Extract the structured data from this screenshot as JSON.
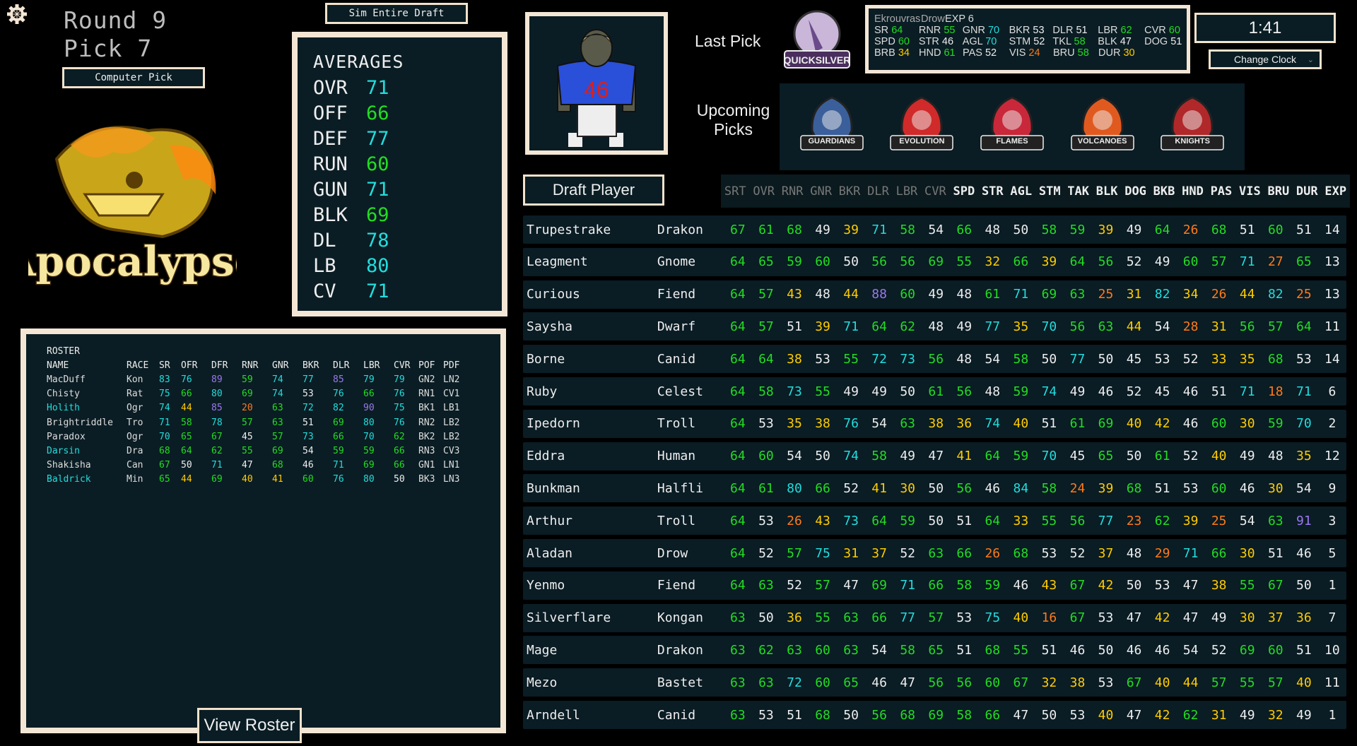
{
  "header": {
    "round_label": "Round 9",
    "pick_label": "Pick 7",
    "computer_pick": "Computer Pick",
    "sim_draft": "Sim Entire Draft",
    "team_name": "Apocalypse"
  },
  "icons": {
    "settings": "gear-icon",
    "dropdown": "chevron-down-icon"
  },
  "averages": {
    "title": "AVERAGES",
    "items": [
      {
        "k": "OVR",
        "v": 71
      },
      {
        "k": "OFF",
        "v": 66
      },
      {
        "k": "DEF",
        "v": 77
      },
      {
        "k": "RUN",
        "v": 60
      },
      {
        "k": "GUN",
        "v": 71
      },
      {
        "k": "BLK",
        "v": 69
      },
      {
        "k": "DL",
        "v": 78
      },
      {
        "k": "LB",
        "v": 80
      },
      {
        "k": "CV",
        "v": 71
      }
    ]
  },
  "rating_colors": {
    "orange_below": 30,
    "yellow_below": 45,
    "white_below": 55,
    "green_below": 70,
    "cyan_below": 85,
    "orange": "#ff7a1a",
    "yellow": "#ffcc00",
    "white": "#eeeeee",
    "green": "#22dd22",
    "cyan": "#22dddd",
    "purple": "#9a78ee"
  },
  "roster": {
    "title": "ROSTER",
    "columns": [
      "NAME",
      "RACE",
      "SR",
      "OFR",
      "DFR",
      "RNR",
      "GNR",
      "BKR",
      "DLR",
      "LBR",
      "CVR",
      "POF",
      "PDF"
    ],
    "rows": [
      {
        "name": "MacDuff",
        "highlight": false,
        "race": "Kon",
        "vals": [
          83,
          76,
          89,
          59,
          74,
          77,
          85,
          79,
          79
        ],
        "pof": "GN2",
        "pdf": "LN2"
      },
      {
        "name": "Chisty",
        "highlight": false,
        "race": "Rat",
        "vals": [
          75,
          66,
          80,
          69,
          74,
          53,
          76,
          66,
          76
        ],
        "pof": "RN1",
        "pdf": "CV1"
      },
      {
        "name": "Holith",
        "highlight": true,
        "race": "Ogr",
        "vals": [
          74,
          44,
          85,
          20,
          63,
          72,
          82,
          90,
          75
        ],
        "pof": "BK1",
        "pdf": "LB1"
      },
      {
        "name": "Brightriddle",
        "highlight": false,
        "race": "Tro",
        "vals": [
          71,
          58,
          78,
          57,
          63,
          51,
          69,
          80,
          76
        ],
        "pof": "RN2",
        "pdf": "LB2"
      },
      {
        "name": "Paradox",
        "highlight": false,
        "race": "Ogr",
        "vals": [
          70,
          65,
          67,
          45,
          57,
          73,
          66,
          70,
          62
        ],
        "pof": "BK2",
        "pdf": "LB2"
      },
      {
        "name": "Darsin",
        "highlight": true,
        "race": "Dra",
        "vals": [
          68,
          64,
          62,
          55,
          69,
          54,
          59,
          59,
          66
        ],
        "pof": "RN3",
        "pdf": "CV3"
      },
      {
        "name": "Shakisha",
        "highlight": false,
        "race": "Can",
        "vals": [
          67,
          50,
          71,
          47,
          68,
          46,
          71,
          69,
          66
        ],
        "pof": "GN1",
        "pdf": "LN1"
      },
      {
        "name": "Baldrick",
        "highlight": true,
        "race": "Min",
        "vals": [
          65,
          44,
          69,
          40,
          41,
          60,
          76,
          80,
          50
        ],
        "pof": "BK3",
        "pdf": "LN3"
      }
    ],
    "view_button": "View Roster"
  },
  "last_pick": {
    "label": "Last Pick",
    "team_logo_text": "QUICKSILVER",
    "jersey_number": "46",
    "jersey_color": "#2a4fd8",
    "player": {
      "name": "Ekrouvras",
      "race": "Drow",
      "exp": "EXP 6",
      "lines": [
        [
          {
            "k": "SR",
            "v": 64
          },
          {
            "k": "RNR",
            "v": 55
          },
          {
            "k": "GNR",
            "v": 70
          },
          {
            "k": "BKR",
            "v": 53
          },
          {
            "k": "DLR",
            "v": 51
          },
          {
            "k": "LBR",
            "v": 62
          },
          {
            "k": "CVR",
            "v": 60
          }
        ],
        [
          {
            "k": "SPD",
            "v": 60
          },
          {
            "k": "STR",
            "v": 46
          },
          {
            "k": "AGL",
            "v": 70
          },
          {
            "k": "STM",
            "v": 52
          },
          {
            "k": "TKL",
            "v": 58
          },
          {
            "k": "BLK",
            "v": 47
          },
          {
            "k": "DOG",
            "v": 51
          }
        ],
        [
          {
            "k": "BRB",
            "v": 34
          },
          {
            "k": "HND",
            "v": 61
          },
          {
            "k": "PAS",
            "v": 52
          },
          {
            "k": "VIS",
            "v": 24
          },
          {
            "k": "BRU",
            "v": 58
          },
          {
            "k": "DUR",
            "v": 30
          }
        ]
      ]
    }
  },
  "clock": {
    "time": "1:41",
    "change_label": "Change Clock"
  },
  "upcoming": {
    "label": "Upcoming Picks",
    "teams": [
      {
        "name": "GUARDIANS",
        "color": "#3a5f9a"
      },
      {
        "name": "EVOLUTION",
        "color": "#d02a2a"
      },
      {
        "name": "FLAMES",
        "color": "#c8283a"
      },
      {
        "name": "VOLCANOES",
        "color": "#e05a20"
      },
      {
        "name": "KNIGHTS",
        "color": "#b0282a"
      }
    ]
  },
  "draft": {
    "button": "Draft Player",
    "columns": [
      "SRT",
      "OVR",
      "RNR",
      "GNR",
      "BKR",
      "DLR",
      "LBR",
      "CVR",
      "SPD",
      "STR",
      "AGL",
      "STM",
      "TAK",
      "BLK",
      "DOG",
      "BKB",
      "HND",
      "PAS",
      "VIS",
      "BRU",
      "DUR",
      "EXP"
    ],
    "dim_columns": 8,
    "players": [
      {
        "name": "Trupestrake",
        "race": "Drakon",
        "vals": [
          67,
          61,
          68,
          49,
          39,
          71,
          58,
          54,
          66,
          48,
          50,
          58,
          59,
          39,
          49,
          64,
          26,
          68,
          51,
          60,
          51,
          14
        ]
      },
      {
        "name": "Leagment",
        "race": "Gnome",
        "vals": [
          64,
          65,
          59,
          60,
          50,
          56,
          56,
          69,
          55,
          32,
          66,
          39,
          64,
          56,
          52,
          49,
          60,
          57,
          71,
          27,
          65,
          13
        ]
      },
      {
        "name": "Curious",
        "race": "Fiend",
        "vals": [
          64,
          57,
          43,
          48,
          44,
          88,
          60,
          49,
          48,
          61,
          71,
          69,
          63,
          25,
          31,
          82,
          34,
          26,
          44,
          82,
          25,
          13
        ]
      },
      {
        "name": "Saysha",
        "race": "Dwarf",
        "vals": [
          64,
          57,
          51,
          39,
          71,
          64,
          62,
          48,
          49,
          77,
          35,
          70,
          56,
          63,
          44,
          54,
          28,
          31,
          56,
          57,
          64,
          11
        ]
      },
      {
        "name": "Borne",
        "race": "Canid",
        "vals": [
          64,
          64,
          38,
          53,
          55,
          72,
          73,
          56,
          48,
          54,
          58,
          50,
          77,
          50,
          45,
          53,
          52,
          33,
          35,
          68,
          53,
          14
        ]
      },
      {
        "name": "Ruby",
        "race": "Celest",
        "vals": [
          64,
          58,
          73,
          55,
          49,
          49,
          50,
          61,
          56,
          48,
          59,
          74,
          49,
          46,
          52,
          45,
          46,
          51,
          71,
          18,
          71,
          6
        ]
      },
      {
        "name": "Ipedorn",
        "race": "Troll",
        "vals": [
          64,
          53,
          35,
          38,
          76,
          54,
          63,
          38,
          36,
          74,
          40,
          51,
          61,
          69,
          40,
          42,
          46,
          60,
          30,
          59,
          70,
          2
        ]
      },
      {
        "name": "Eddra",
        "race": "Human",
        "vals": [
          64,
          60,
          54,
          50,
          74,
          58,
          49,
          47,
          41,
          64,
          59,
          70,
          45,
          65,
          50,
          61,
          52,
          40,
          49,
          48,
          35,
          12
        ]
      },
      {
        "name": "Bunkman",
        "race": "Halfli",
        "vals": [
          64,
          61,
          80,
          66,
          52,
          41,
          30,
          50,
          56,
          46,
          84,
          58,
          24,
          39,
          68,
          51,
          53,
          60,
          46,
          30,
          54,
          9
        ]
      },
      {
        "name": "Arthur",
        "race": "Troll",
        "vals": [
          64,
          53,
          26,
          43,
          73,
          64,
          59,
          50,
          51,
          64,
          33,
          55,
          56,
          77,
          23,
          62,
          39,
          25,
          54,
          63,
          91,
          3
        ]
      },
      {
        "name": "Aladan",
        "race": "Drow",
        "vals": [
          64,
          52,
          57,
          75,
          31,
          37,
          52,
          63,
          66,
          26,
          68,
          53,
          52,
          37,
          48,
          29,
          71,
          66,
          30,
          51,
          46,
          5
        ]
      },
      {
        "name": "Yenmo",
        "race": "Fiend",
        "vals": [
          64,
          63,
          52,
          57,
          47,
          69,
          71,
          66,
          58,
          59,
          46,
          43,
          67,
          42,
          50,
          53,
          47,
          38,
          55,
          67,
          50,
          1
        ]
      },
      {
        "name": "Silverflare",
        "race": "Kongan",
        "vals": [
          63,
          50,
          36,
          55,
          63,
          66,
          77,
          57,
          53,
          75,
          40,
          16,
          67,
          53,
          47,
          42,
          47,
          49,
          30,
          37,
          36,
          7
        ]
      },
      {
        "name": "Mage",
        "race": "Drakon",
        "vals": [
          63,
          62,
          63,
          60,
          63,
          54,
          58,
          65,
          51,
          68,
          55,
          51,
          46,
          50,
          46,
          46,
          54,
          52,
          69,
          60,
          51,
          10
        ]
      },
      {
        "name": "Mezo",
        "race": "Bastet",
        "vals": [
          63,
          63,
          72,
          60,
          65,
          46,
          47,
          56,
          56,
          60,
          67,
          32,
          38,
          53,
          67,
          40,
          44,
          57,
          55,
          57,
          40,
          11
        ]
      },
      {
        "name": "Arndell",
        "race": "Canid",
        "vals": [
          63,
          53,
          51,
          68,
          50,
          56,
          68,
          69,
          58,
          66,
          47,
          50,
          53,
          40,
          47,
          42,
          62,
          31,
          49,
          32,
          49,
          1
        ]
      }
    ]
  }
}
